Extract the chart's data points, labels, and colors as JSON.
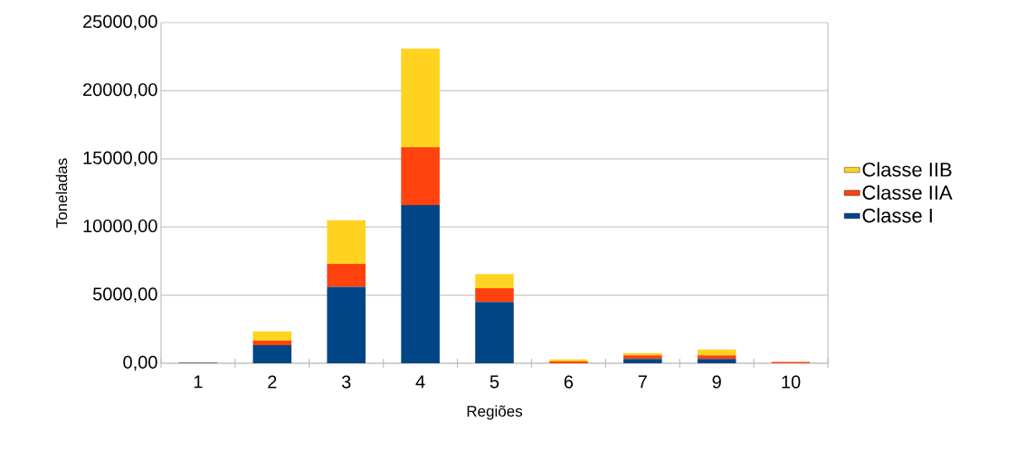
{
  "chart_data": {
    "type": "bar",
    "stacked": true,
    "xlabel": "Regiões",
    "ylabel": "Toneladas",
    "categories": [
      "1",
      "2",
      "3",
      "4",
      "5",
      "6",
      "7",
      "9",
      "10"
    ],
    "series": [
      {
        "name": "Classe I",
        "color": "#004586",
        "values": [
          30,
          1330,
          5600,
          11600,
          4500,
          0,
          310,
          310,
          0
        ]
      },
      {
        "name": "Classe IIA",
        "color": "#ff420e",
        "values": [
          20,
          330,
          1700,
          4250,
          1000,
          130,
          270,
          270,
          100
        ]
      },
      {
        "name": "Classe IIB",
        "color": "#ffd320",
        "values": [
          0,
          670,
          3200,
          7250,
          1050,
          160,
          170,
          430,
          0
        ]
      }
    ],
    "ylim": [
      0,
      25000
    ],
    "yticks": [
      {
        "value": 0,
        "label": "0,00"
      },
      {
        "value": 5000,
        "label": "5000,00"
      },
      {
        "value": 10000,
        "label": "10000,00"
      },
      {
        "value": 15000,
        "label": "15000,00"
      },
      {
        "value": 20000,
        "label": "20000,00"
      },
      {
        "value": 25000,
        "label": "25000,00"
      }
    ],
    "grid": "y",
    "legend": "right"
  }
}
